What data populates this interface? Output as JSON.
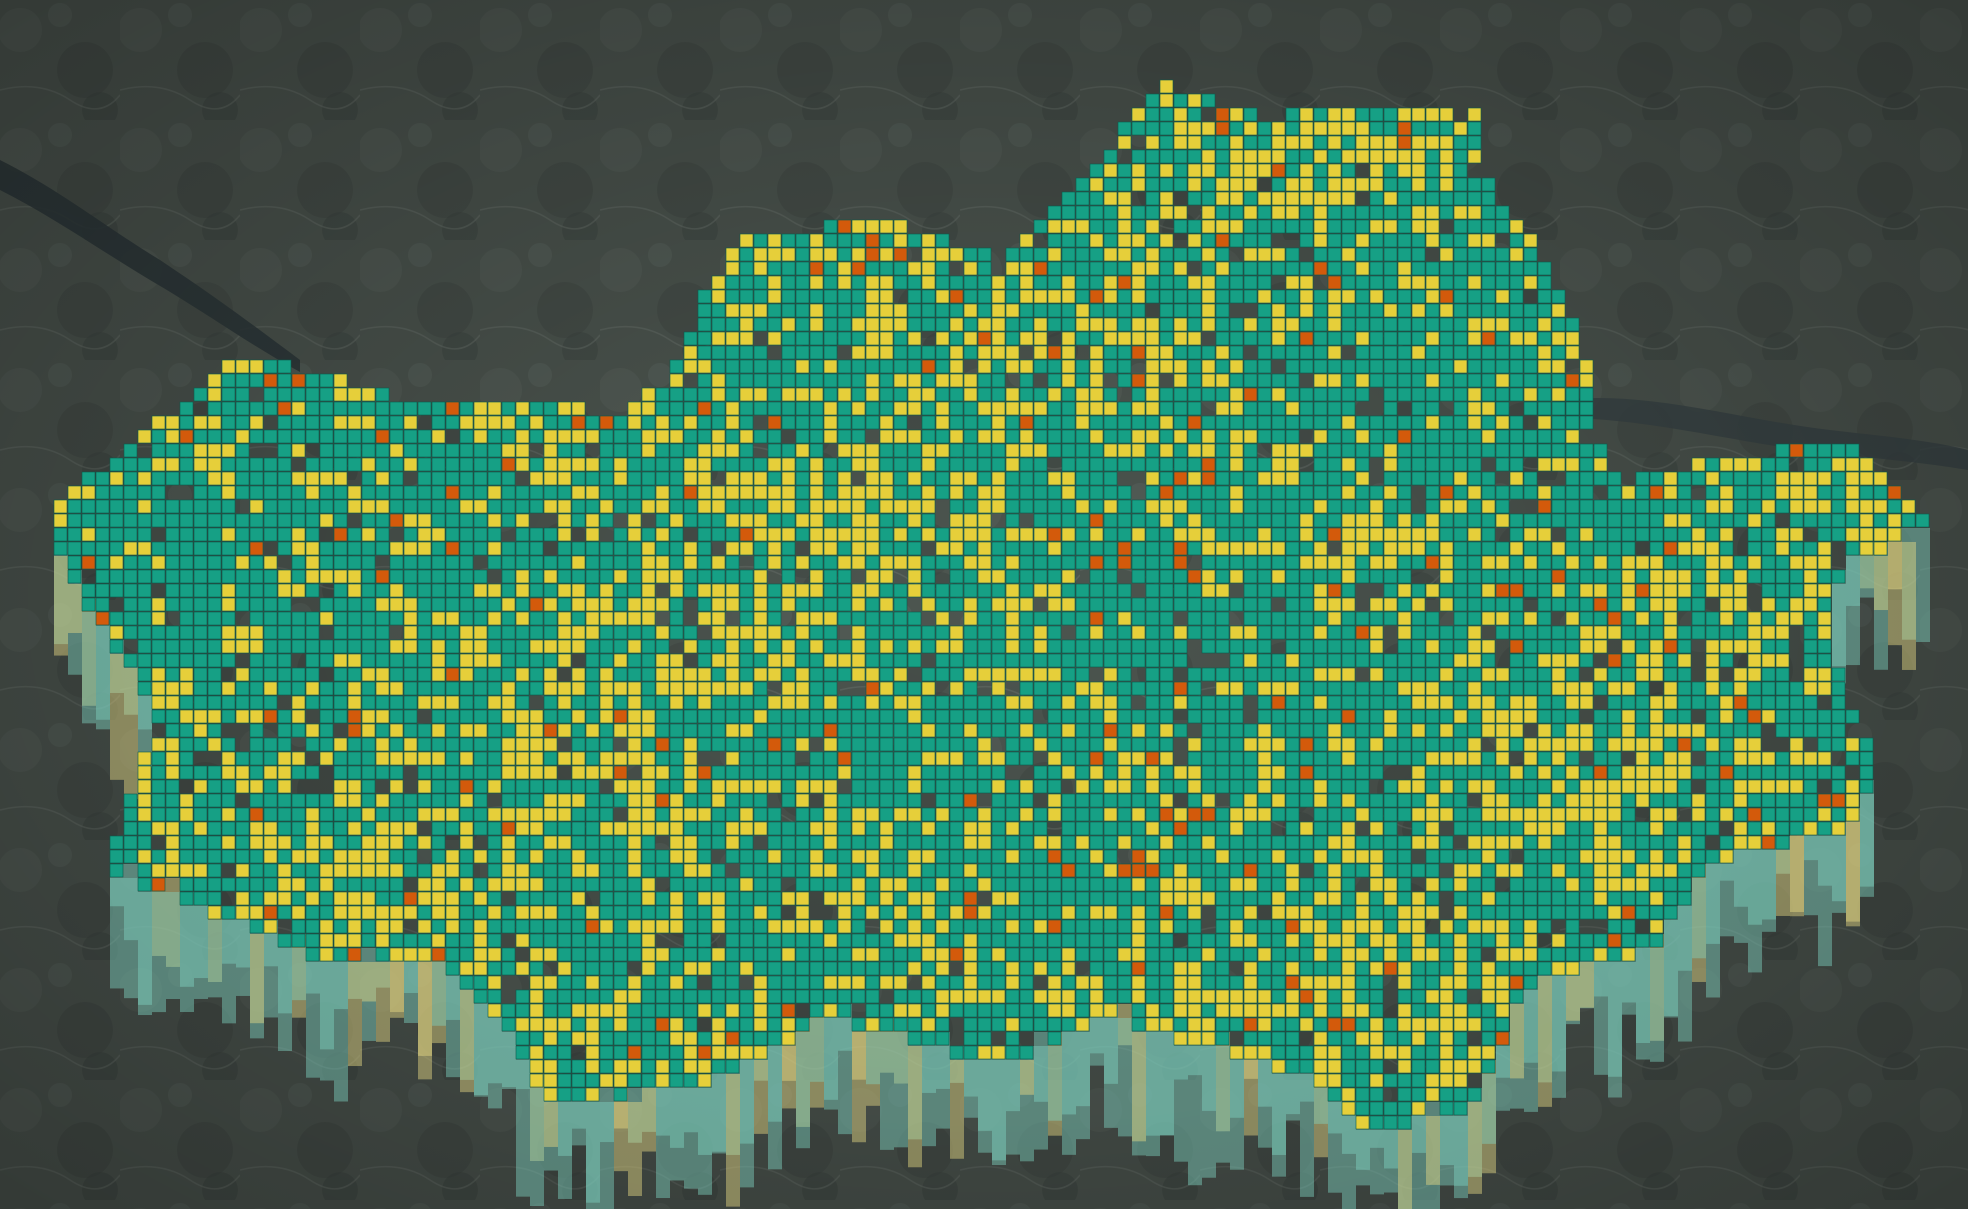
{
  "map": {
    "basemap": "satellite",
    "view": "oblique-3d",
    "layer": {
      "type": "extruded-grid",
      "classes": [
        {
          "id": "low",
          "color": "#16a085"
        },
        {
          "id": "mid",
          "color": "#e6cf3a"
        },
        {
          "id": "high",
          "color": "#d35a0b"
        }
      ]
    }
  }
}
